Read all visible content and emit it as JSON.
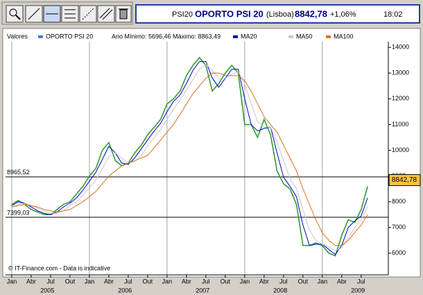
{
  "header": {
    "symbol": "PSI20",
    "name": "OPORTO PSI 20",
    "exchange": "(Lisboa)",
    "price": "8842,78",
    "change": "+1,06%",
    "time": "18:02"
  },
  "chart_data": {
    "type": "line",
    "legend_title": "Valores",
    "legend_note": "Ano Mínimo: 5696,46 Máximo: 8863,49",
    "legend": "top",
    "footer": "© IT-Finance.com - Data is indicative",
    "x": [
      "2005-01",
      "2005-02",
      "2005-03",
      "2005-04",
      "2005-05",
      "2005-06",
      "2005-07",
      "2005-08",
      "2005-09",
      "2005-10",
      "2005-11",
      "2005-12",
      "2006-01",
      "2006-02",
      "2006-03",
      "2006-04",
      "2006-05",
      "2006-06",
      "2006-07",
      "2006-08",
      "2006-09",
      "2006-10",
      "2006-11",
      "2006-12",
      "2007-01",
      "2007-02",
      "2007-03",
      "2007-04",
      "2007-05",
      "2007-06",
      "2007-07",
      "2007-08",
      "2007-09",
      "2007-10",
      "2007-11",
      "2007-12",
      "2008-01",
      "2008-02",
      "2008-03",
      "2008-04",
      "2008-05",
      "2008-06",
      "2008-07",
      "2008-08",
      "2008-09",
      "2008-10",
      "2008-11",
      "2008-12",
      "2009-01",
      "2009-02",
      "2009-03",
      "2009-04",
      "2009-05",
      "2009-06",
      "2009-07",
      "2009-08"
    ],
    "series": [
      {
        "name": "OPORTO PSI 20",
        "color": "#2e9e2e",
        "swatch": "#4a7fbf",
        "values": [
          7900,
          8050,
          7900,
          7700,
          7600,
          7500,
          7500,
          7700,
          7900,
          8000,
          8300,
          8600,
          9000,
          9300,
          10000,
          10300,
          9600,
          9400,
          9500,
          9900,
          10200,
          10600,
          10900,
          11200,
          11800,
          12000,
          12300,
          12900,
          13300,
          13600,
          13300,
          12300,
          12600,
          13000,
          13300,
          13000,
          11000,
          11000,
          10500,
          11200,
          10600,
          9200,
          8700,
          8500,
          7900,
          6300,
          6300,
          6400,
          6300,
          6000,
          5900,
          6700,
          7300,
          7200,
          7700,
          8600
        ]
      },
      {
        "name": "MA20",
        "color": "#0000cc",
        "values": [
          7850,
          8000,
          7950,
          7800,
          7650,
          7550,
          7500,
          7600,
          7800,
          7950,
          8150,
          8450,
          8800,
          9150,
          9650,
          10150,
          9900,
          9500,
          9450,
          9700,
          10050,
          10400,
          10750,
          11050,
          11500,
          11900,
          12150,
          12600,
          13100,
          13450,
          13450,
          12800,
          12450,
          12800,
          13150,
          13150,
          12000,
          11000,
          10750,
          10850,
          10900,
          9900,
          8950,
          8600,
          8200,
          7100,
          6300,
          6350,
          6350,
          6150,
          5950,
          6300,
          7000,
          7250,
          7450,
          8150
        ]
      },
      {
        "name": "MA50",
        "color": "#c8c8c8",
        "values": [
          7800,
          7900,
          7950,
          7850,
          7750,
          7650,
          7550,
          7550,
          7650,
          7850,
          8000,
          8250,
          8550,
          8850,
          9300,
          9750,
          9900,
          9700,
          9500,
          9550,
          9800,
          10150,
          10500,
          10800,
          11200,
          11600,
          11950,
          12350,
          12750,
          13150,
          13350,
          13100,
          12800,
          12800,
          12950,
          13050,
          12600,
          11800,
          11100,
          10900,
          10900,
          10300,
          9600,
          8900,
          8500,
          7700,
          6900,
          6500,
          6350,
          6250,
          6100,
          6200,
          6600,
          7000,
          7300,
          7800
        ]
      },
      {
        "name": "MA100",
        "color": "#e07020",
        "values": [
          7800,
          7850,
          7900,
          7850,
          7800,
          7700,
          7650,
          7600,
          7650,
          7700,
          7850,
          8000,
          8200,
          8400,
          8700,
          9000,
          9200,
          9400,
          9500,
          9600,
          9700,
          9800,
          10100,
          10400,
          10700,
          11000,
          11400,
          11800,
          12200,
          12500,
          12800,
          13000,
          13000,
          12900,
          12900,
          12900,
          12700,
          12300,
          11800,
          11300,
          11000,
          10700,
          10200,
          9700,
          9200,
          8500,
          7900,
          7300,
          6800,
          6500,
          6300,
          6300,
          6500,
          6800,
          7100,
          7500
        ]
      }
    ],
    "ylim": [
      5160,
      14220
    ],
    "yticks": [
      6000,
      7000,
      8000,
      9000,
      10000,
      11000,
      12000,
      13000,
      14000
    ],
    "xticks": [
      {
        "value": "2005-01",
        "label": "Jan"
      },
      {
        "value": "2005-04",
        "label": "Abr"
      },
      {
        "value": "2005-07",
        "label": "Jul"
      },
      {
        "value": "2005-10",
        "label": "Out"
      },
      {
        "value": "2006-01",
        "label": "Jan"
      },
      {
        "value": "2006-04",
        "label": "Abr"
      },
      {
        "value": "2006-07",
        "label": "Jul"
      },
      {
        "value": "2006-10",
        "label": "Out"
      },
      {
        "value": "2007-01",
        "label": "Jan"
      },
      {
        "value": "2007-04",
        "label": "Abr"
      },
      {
        "value": "2007-07",
        "label": "Jul"
      },
      {
        "value": "2007-10",
        "label": "Out"
      },
      {
        "value": "2008-01",
        "label": "Jan"
      },
      {
        "value": "2008-04",
        "label": "Abr"
      },
      {
        "value": "2008-07",
        "label": "Jul"
      },
      {
        "value": "2008-10",
        "label": "Out"
      },
      {
        "value": "2009-01",
        "label": "Jan"
      },
      {
        "value": "2009-04",
        "label": "Abr"
      },
      {
        "value": "2009-07",
        "label": "Jul"
      }
    ],
    "years": [
      2005,
      2006,
      2007,
      2008,
      2009
    ],
    "hlines": [
      {
        "value": 8965.52,
        "label": "8965,52"
      },
      {
        "value": 7399.03,
        "label": "7399,03"
      }
    ],
    "current": {
      "value": 8842.78,
      "label": "8842,78"
    }
  }
}
